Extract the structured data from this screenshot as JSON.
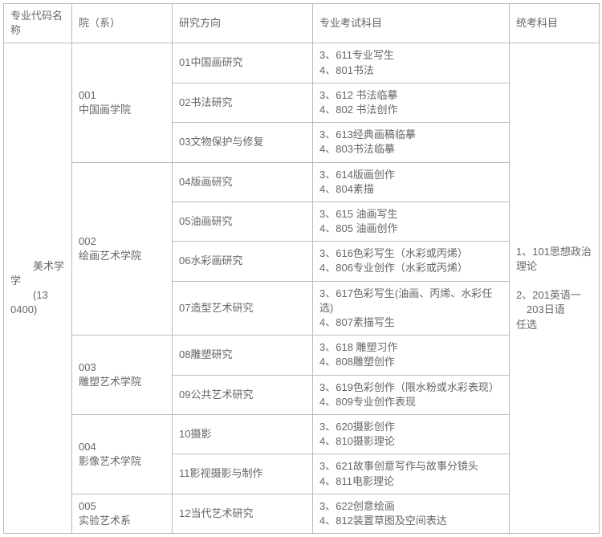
{
  "headers": {
    "code_name": "专业代码名称",
    "department": "院（系）",
    "direction": "研究方向",
    "pro_exam": "专业考试科目",
    "common_exam": "统考科目"
  },
  "major": {
    "name": "美术学",
    "code": "(130400)",
    "display": "美术学\n(130400)"
  },
  "common_exam": "1、101思想政治理论\n\n2、201英语一\n　203日语\n任选",
  "departments": [
    {
      "name": "001\n中国画学院",
      "rows": [
        {
          "direction": "01中国画研究",
          "exam": "3、611专业写生\n4、801书法"
        },
        {
          "direction": "02书法研究",
          "exam": "3、612 书法临摹\n4、802 书法创作"
        },
        {
          "direction": "03文物保护与修复",
          "exam": "3、613经典画稿临摹\n4、803书法临摹"
        }
      ]
    },
    {
      "name": "002\n绘画艺术学院",
      "rows": [
        {
          "direction": "04版画研究",
          "exam": "3、614版画创作\n4、804素描"
        },
        {
          "direction": "05油画研究",
          "exam": "3、615 油画写生\n4、805 油画创作"
        },
        {
          "direction": "06水彩画研究",
          "exam": "3、616色彩写生（水彩或丙烯）\n4、806专业创作（水彩或丙烯）"
        },
        {
          "direction": "07造型艺术研究",
          "exam": "3、617色彩写生(油画、丙烯、水彩任选)\n4、807素描写生"
        }
      ]
    },
    {
      "name": "003\n雕塑艺术学院",
      "rows": [
        {
          "direction": "08雕塑研究",
          "exam": "3、618 雕塑习作\n4、808雕塑创作"
        },
        {
          "direction": "09公共艺术研究",
          "exam": "3、619色彩创作（限水粉或水彩表现）\n4、809专业创作表现"
        }
      ]
    },
    {
      "name": "004\n影像艺术学院",
      "rows": [
        {
          "direction": "10摄影",
          "exam": "3、620摄影创作\n4、810摄影理论"
        },
        {
          "direction": "11影视摄影与制作",
          "exam": "3、621故事创意写作与故事分镜头\n4、811电影理论"
        }
      ]
    },
    {
      "name": "005\n实验艺术系",
      "rows": [
        {
          "direction": "12当代艺术研究",
          "exam": "3、622创意绘画\n4、812装置草图及空间表达"
        }
      ]
    }
  ]
}
